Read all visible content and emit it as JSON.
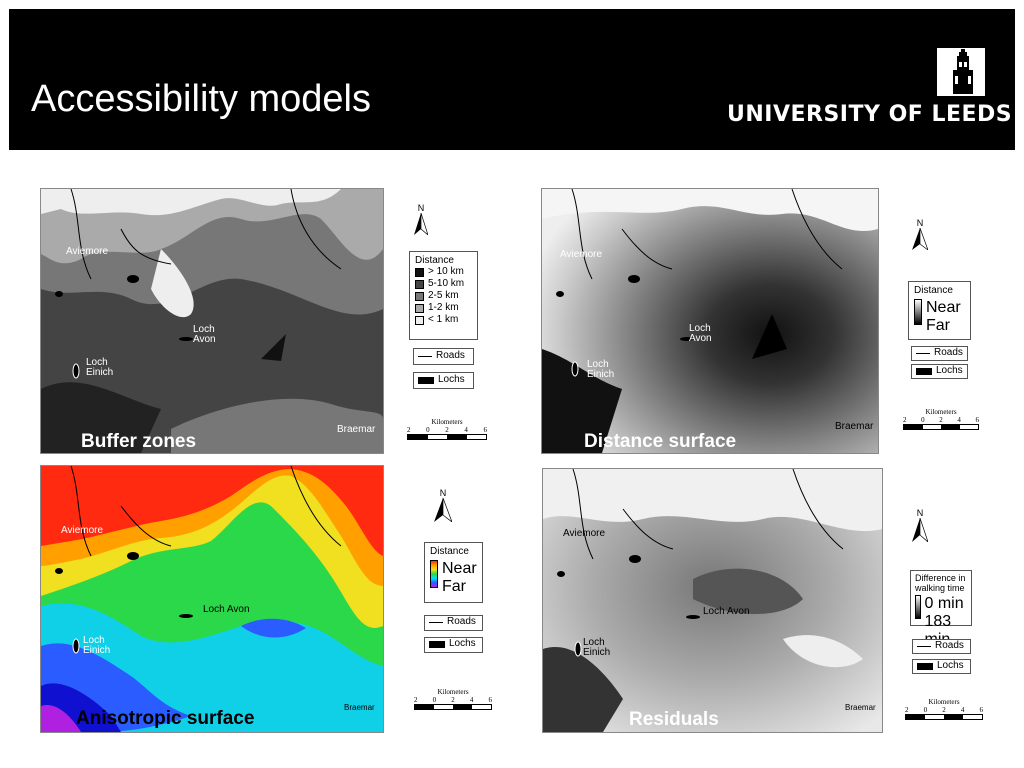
{
  "slide": {
    "title": "Accessibility models",
    "logo_text": "UNIVERSITY OF LEEDS"
  },
  "panels": [
    {
      "caption": "Buffer zones",
      "places": [
        "Aviemore",
        "Loch\nAvon",
        "Loch\nEinich",
        "Braemar"
      ],
      "legend": {
        "title": "Distance",
        "items": [
          "> 10 km",
          "5-10 km",
          "2-5 km",
          "1-2 km",
          "< 1 km"
        ],
        "colors": [
          "#111111",
          "#444444",
          "#777777",
          "#aaaaaa",
          "#eeeeee"
        ],
        "roads": "Roads",
        "lochs": "Lochs"
      },
      "north": "N",
      "scale_title": "Kilometers",
      "scale_ticks": [
        "2",
        "0",
        "2",
        "4",
        "6"
      ]
    },
    {
      "caption": "Distance surface",
      "places": [
        "Aviemore",
        "Loch\nAvon",
        "Loch\nEinich",
        "Braemar"
      ],
      "legend": {
        "title": "Distance",
        "near": "Near",
        "far": "Far",
        "roads": "Roads",
        "lochs": "Lochs"
      },
      "north": "N",
      "scale_title": "Kilometers",
      "scale_ticks": [
        "2",
        "0",
        "2",
        "4",
        "6"
      ]
    },
    {
      "caption": "Anisotropic surface",
      "places": [
        "Aviemore",
        "Loch Avon",
        "Loch\nEinich",
        "Braemar"
      ],
      "legend": {
        "title": "Distance",
        "near": "Near",
        "far": "Far",
        "roads": "Roads",
        "lochs": "Lochs"
      },
      "north": "N",
      "scale_title": "Kilometers",
      "scale_ticks": [
        "2",
        "0",
        "2",
        "4",
        "6"
      ]
    },
    {
      "caption": "Residuals",
      "places": [
        "Aviemore",
        "Loch Avon",
        "Loch\nEinich",
        "Braemar"
      ],
      "legend": {
        "title": "Difference in\nwalking time",
        "near": "0 min",
        "far": "183 min",
        "roads": "Roads",
        "lochs": "Lochs"
      },
      "north": "N",
      "scale_title": "Kilometers",
      "scale_ticks": [
        "2",
        "0",
        "2",
        "4",
        "6"
      ]
    }
  ]
}
